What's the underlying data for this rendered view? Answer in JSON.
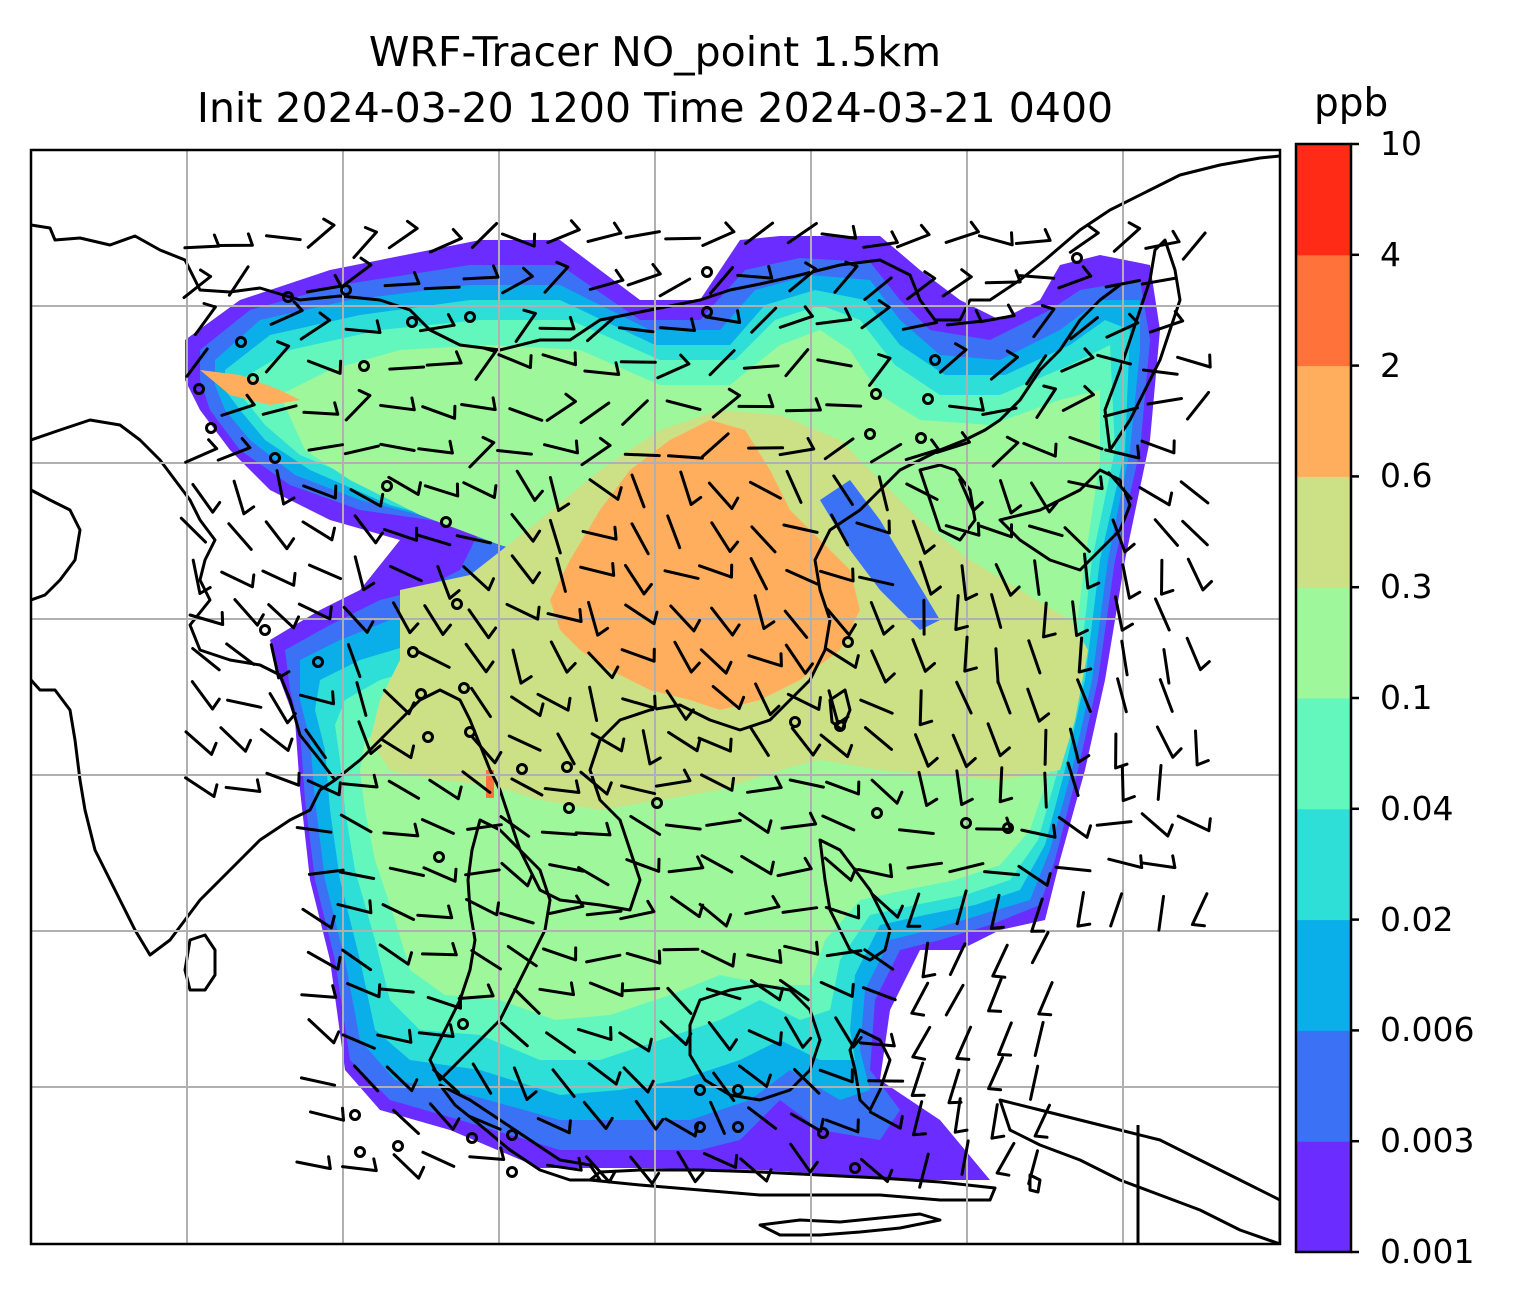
{
  "title": {
    "line1": "WRF-Tracer NO_point 1.5km",
    "line2": "Init 2024-03-20 1200 Time 2024-03-21 0400"
  },
  "colorbar": {
    "unit": "ppb",
    "levels": [
      "0.001",
      "0.003",
      "0.006",
      "0.02",
      "0.04",
      "0.1",
      "0.3",
      "0.6",
      "2",
      "4",
      "10"
    ],
    "colors": [
      "#6a2cff",
      "#3b72f5",
      "#0aaee9",
      "#2ddfd6",
      "#64f7bd",
      "#9ff79b",
      "#cce086",
      "#ffae5e",
      "#ff7239",
      "#ff2b17"
    ]
  },
  "map": {
    "gridlines": true,
    "coastline_color": "#000000",
    "grid_color": "#b0b0b0",
    "wind_barb_color": "#000000"
  }
}
